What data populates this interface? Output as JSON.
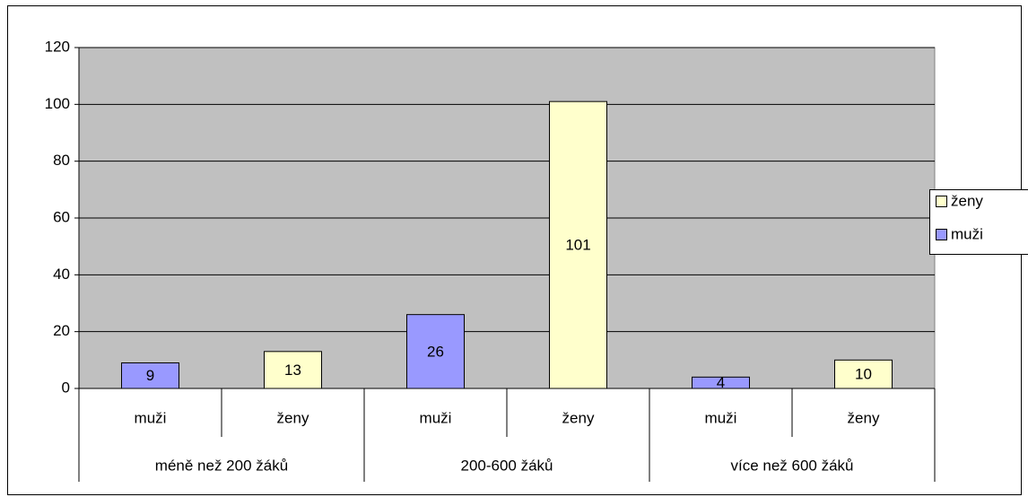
{
  "chart_data": {
    "type": "bar",
    "groups": [
      {
        "label": "méně než 200 žáků",
        "categories": [
          "muži",
          "ženy"
        ]
      },
      {
        "label": "200-600 žáků",
        "categories": [
          "muži",
          "ženy"
        ]
      },
      {
        "label": "více než 600 žáků",
        "categories": [
          "muži",
          "ženy"
        ]
      }
    ],
    "series": [
      {
        "name": "muži",
        "color": "#9999ff",
        "values": [
          9,
          null,
          26,
          null,
          4,
          null
        ]
      },
      {
        "name": "ženy",
        "color": "#ffffcc",
        "values": [
          null,
          13,
          null,
          101,
          null,
          10
        ]
      }
    ],
    "ylim": [
      0,
      120
    ],
    "yticks": [
      0,
      20,
      40,
      60,
      80,
      100,
      120
    ],
    "grid": true,
    "plot_background": "#c0c0c0",
    "legend": "right"
  }
}
